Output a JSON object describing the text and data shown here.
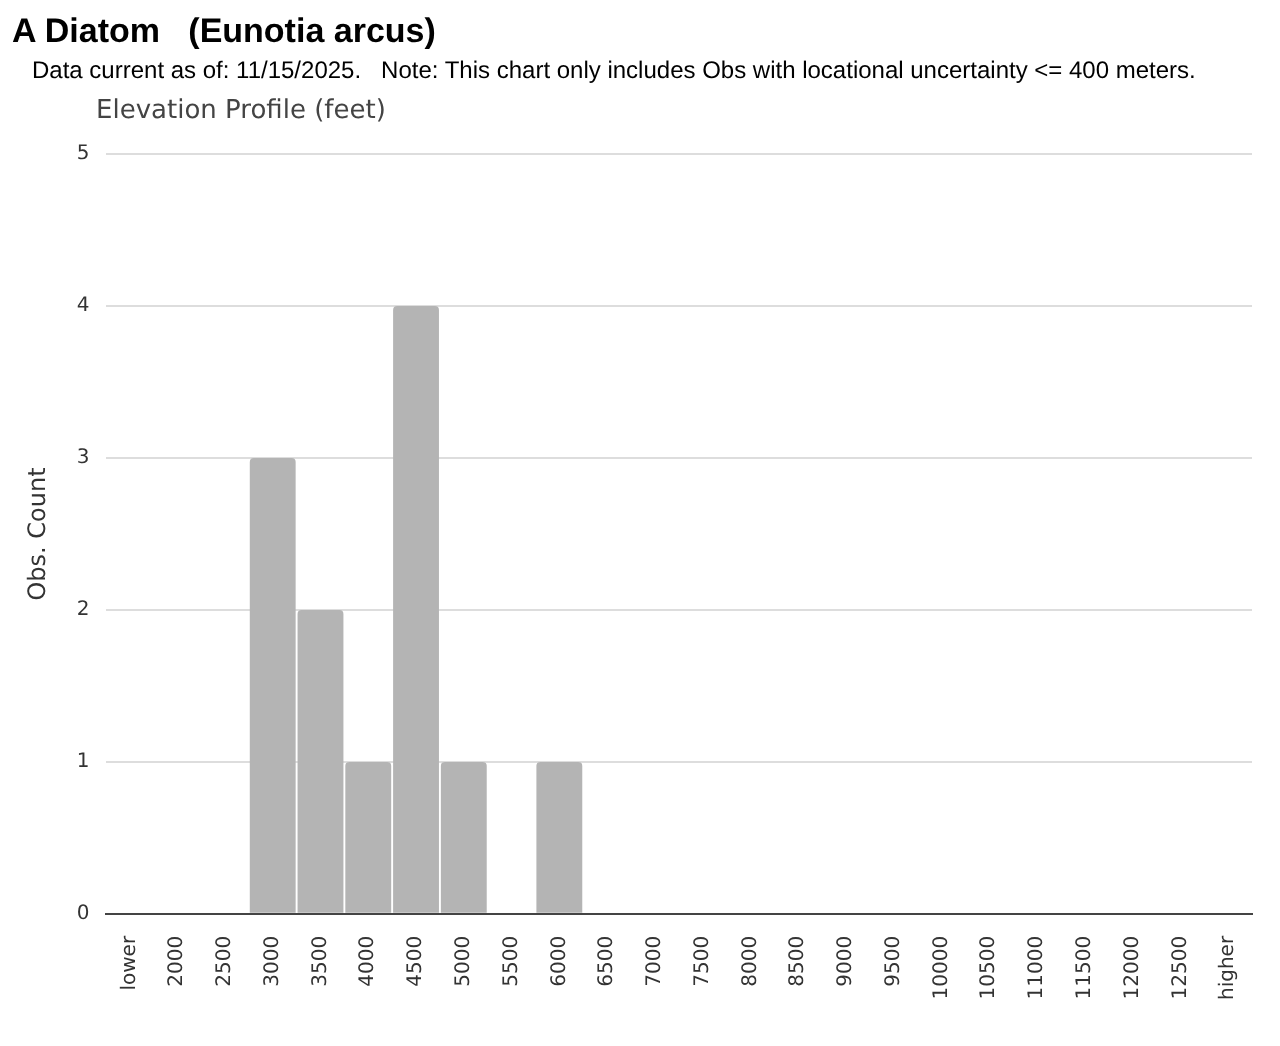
{
  "chart_data": {
    "type": "bar",
    "title": "A Diatom   (Eunotia arcus)",
    "subtitle": "Data current as of: 11/15/2025.   Note: This chart only includes Obs with locational uncertainty <= 400 meters.",
    "annotations": [
      "Elevation Profile (feet)"
    ],
    "ylabel": "Obs. Count",
    "categories": [
      "lower",
      "2000",
      "2500",
      "3000",
      "3500",
      "4000",
      "4500",
      "5000",
      "5500",
      "6000",
      "6500",
      "7000",
      "7500",
      "8000",
      "8500",
      "9000",
      "9500",
      "10000",
      "10500",
      "11000",
      "11500",
      "12000",
      "12500",
      "higher"
    ],
    "values": [
      0,
      0,
      0,
      3,
      2,
      1,
      4,
      1,
      0,
      1,
      0,
      0,
      0,
      0,
      0,
      0,
      0,
      0,
      0,
      0,
      0,
      0,
      0,
      0
    ],
    "color": "#b4b4b4",
    "ylim": [
      0,
      5
    ],
    "yticks": [
      0,
      1,
      2,
      3,
      4,
      5
    ],
    "grid": "y",
    "legend": false
  }
}
